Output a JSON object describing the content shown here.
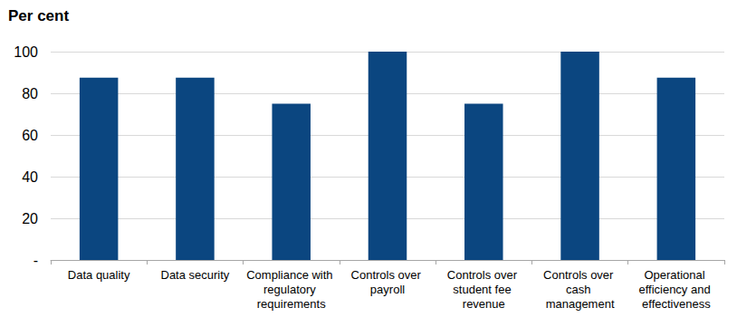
{
  "chart_data": {
    "type": "bar",
    "ylabel": "Per cent",
    "categories": [
      "Data quality",
      "Data security",
      "Compliance with regulatory requirements",
      "Controls over payroll",
      "Controls over student fee revenue",
      "Controls over cash management",
      "Operational efficiency and effectiveness"
    ],
    "values": [
      87.5,
      87.5,
      75,
      100,
      75,
      100,
      87.5
    ],
    "color": "#0b4680",
    "ylim": [
      0,
      100
    ],
    "yticks": [
      {
        "value": 0,
        "label": "-"
      },
      20,
      40,
      60,
      80,
      100
    ],
    "grid": true
  }
}
